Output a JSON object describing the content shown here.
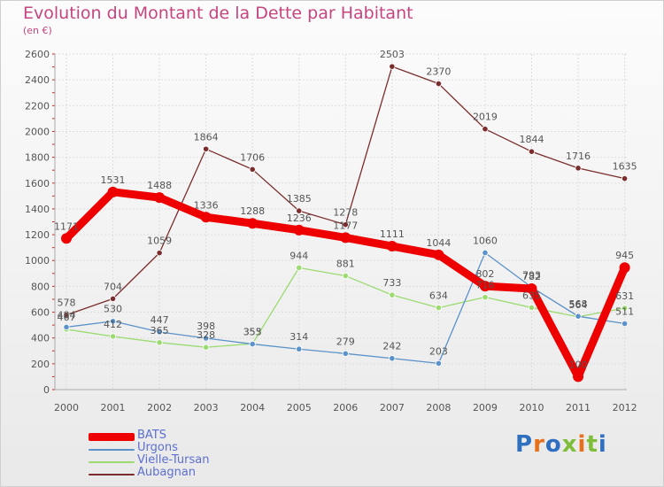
{
  "title": "Evolution du Montant de la Dette par Habitant",
  "subtitle": "(en €)",
  "logo": {
    "text": "Proxiti",
    "colors": [
      "#2f6fc0",
      "#e8701a",
      "#2f6fc0",
      "#7fbe3b",
      "#e8701a",
      "#7fbe3b",
      "#2f6fc0"
    ]
  },
  "chart_data": {
    "type": "line",
    "title": "Evolution du Montant de la Dette par Habitant",
    "subtitle": "(en €)",
    "xlabel": "",
    "ylabel": "",
    "x": [
      "2000",
      "2001",
      "2002",
      "2003",
      "2004",
      "2005",
      "2006",
      "2007",
      "2008",
      "2009",
      "2010",
      "2011",
      "2012"
    ],
    "ylim": [
      0,
      2600
    ],
    "yticks": [
      "0",
      "200",
      "400",
      "600",
      "800",
      "1000",
      "1200",
      "1400",
      "1600",
      "1800",
      "2000",
      "2200",
      "2400",
      "2600"
    ],
    "grid": true,
    "legend": "bottom-left",
    "series": [
      {
        "name": "BATS",
        "color": "#ee0000",
        "values": [
          1171,
          1531,
          1488,
          1336,
          1288,
          1236,
          1177,
          1111,
          1044,
          802,
          782,
          100,
          945
        ],
        "labels": [
          "1171",
          "1531",
          "1488",
          "1336",
          "1288",
          "1236",
          "1177",
          "1111",
          "1044",
          "802",
          "782",
          "100",
          "945"
        ]
      },
      {
        "name": "Urgons",
        "color": "#5a92c9",
        "values": [
          484,
          530,
          447,
          398,
          353,
          314,
          279,
          242,
          203,
          1060,
          793,
          568,
          511
        ],
        "labels": [
          "484",
          "530",
          "447",
          "398",
          "353",
          "314",
          "279",
          "242",
          "203",
          "1060",
          "793",
          "568",
          "511"
        ]
      },
      {
        "name": "Vielle-Tursan",
        "color": "#9bdb72",
        "values": [
          467,
          412,
          365,
          328,
          355,
          944,
          881,
          733,
          634,
          716,
          635,
          564,
          631
        ],
        "labels": [
          "467",
          "412",
          "365",
          "328",
          "355",
          "944",
          "881",
          "733",
          "634",
          "716",
          "635",
          "564",
          "631"
        ]
      },
      {
        "name": "Aubagnan",
        "color": "#7b2d2d",
        "values": [
          578,
          704,
          1059,
          1864,
          1706,
          1385,
          1278,
          2503,
          2370,
          2019,
          1844,
          1716,
          1635
        ],
        "labels": [
          "578",
          "704",
          "1059",
          "1864",
          "1706",
          "1385",
          "1278",
          "2503",
          "2370",
          "2019",
          "1844",
          "1716",
          "1635"
        ]
      }
    ]
  }
}
